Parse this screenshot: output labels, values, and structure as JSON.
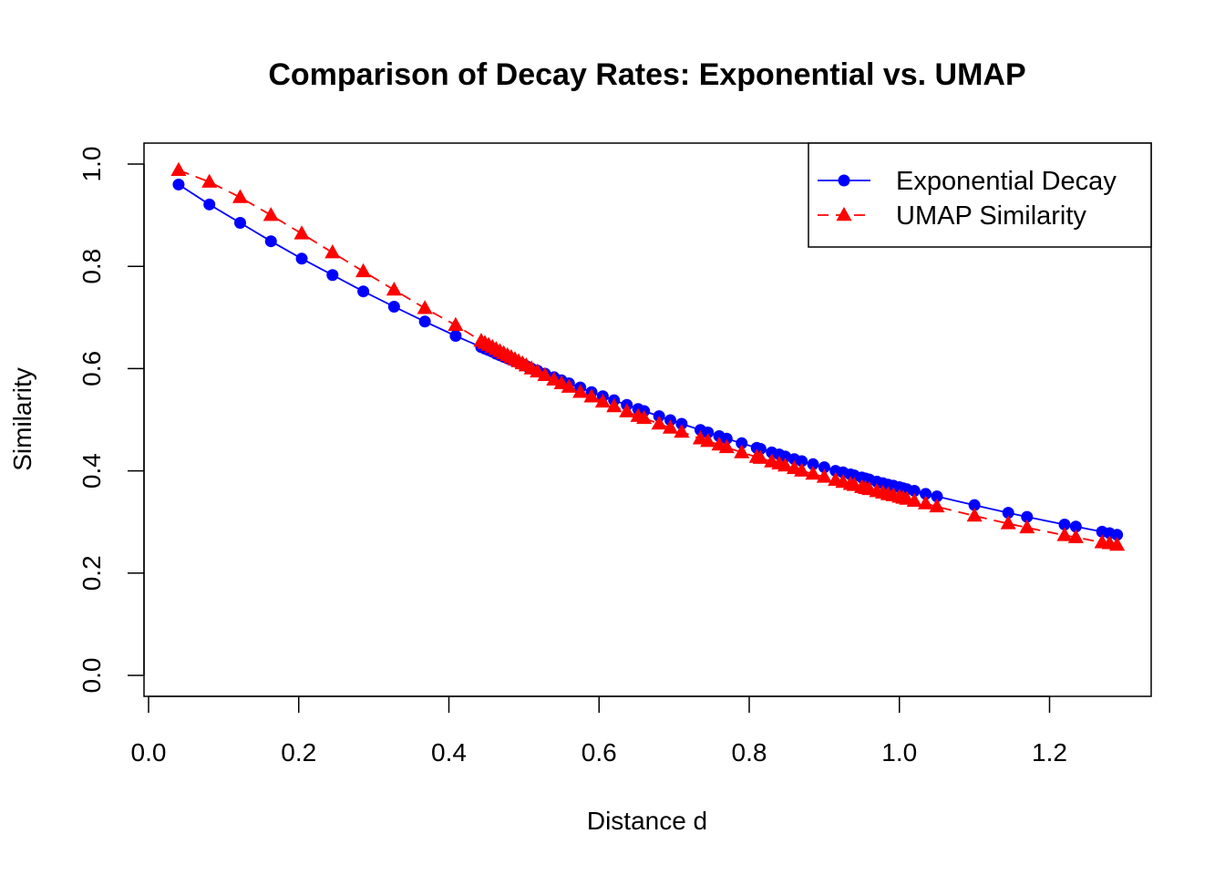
{
  "chart_data": {
    "type": "line",
    "title": "Comparison of Decay Rates: Exponential vs. UMAP",
    "xlabel": "Distance d",
    "ylabel": "Similarity",
    "xlim": [
      0.0,
      1.3
    ],
    "ylim": [
      0.0,
      1.0
    ],
    "xticks": [
      "0.0",
      "0.2",
      "0.4",
      "0.6",
      "0.8",
      "1.0",
      "1.2"
    ],
    "yticks": [
      "0.0",
      "0.2",
      "0.4",
      "0.6",
      "0.8",
      "1.0"
    ],
    "grid": false,
    "legend_position": "top-right",
    "x": [
      0.04,
      0.081,
      0.122,
      0.163,
      0.204,
      0.245,
      0.286,
      0.327,
      0.368,
      0.409,
      0.443,
      0.448,
      0.453,
      0.458,
      0.463,
      0.468,
      0.473,
      0.478,
      0.483,
      0.488,
      0.493,
      0.498,
      0.503,
      0.51,
      0.518,
      0.528,
      0.54,
      0.55,
      0.56,
      0.575,
      0.59,
      0.605,
      0.62,
      0.637,
      0.652,
      0.66,
      0.68,
      0.695,
      0.71,
      0.735,
      0.745,
      0.76,
      0.77,
      0.79,
      0.81,
      0.815,
      0.83,
      0.84,
      0.848,
      0.86,
      0.87,
      0.885,
      0.9,
      0.915,
      0.925,
      0.935,
      0.94,
      0.95,
      0.955,
      0.96,
      0.97,
      0.978,
      0.985,
      0.992,
      1.0,
      1.005,
      1.01,
      1.02,
      1.035,
      1.05,
      1.1,
      1.145,
      1.17,
      1.22,
      1.235,
      1.27,
      1.28,
      1.29
    ],
    "series": [
      {
        "name": "Exponential Decay",
        "color": "#0000ff",
        "marker": "circle",
        "line_style": "solid",
        "values": [
          0.96,
          0.921,
          0.885,
          0.849,
          0.815,
          0.783,
          0.751,
          0.721,
          0.692,
          0.664,
          0.642,
          0.639,
          0.636,
          0.633,
          0.629,
          0.626,
          0.623,
          0.62,
          0.617,
          0.614,
          0.611,
          0.608,
          0.605,
          0.6,
          0.596,
          0.59,
          0.583,
          0.577,
          0.571,
          0.563,
          0.554,
          0.546,
          0.538,
          0.529,
          0.521,
          0.517,
          0.507,
          0.499,
          0.492,
          0.48,
          0.475,
          0.468,
          0.463,
          0.454,
          0.445,
          0.443,
          0.436,
          0.432,
          0.428,
          0.423,
          0.419,
          0.413,
          0.407,
          0.4,
          0.397,
          0.393,
          0.391,
          0.387,
          0.385,
          0.383,
          0.379,
          0.376,
          0.373,
          0.371,
          0.368,
          0.366,
          0.364,
          0.361,
          0.355,
          0.35,
          0.333,
          0.318,
          0.31,
          0.295,
          0.291,
          0.281,
          0.278,
          0.275
        ]
      },
      {
        "name": "UMAP Similarity",
        "color": "#ff0000",
        "marker": "triangle",
        "line_style": "dashed",
        "values": [
          0.988,
          0.965,
          0.935,
          0.9,
          0.864,
          0.827,
          0.79,
          0.754,
          0.718,
          0.685,
          0.654,
          0.65,
          0.646,
          0.642,
          0.638,
          0.634,
          0.63,
          0.626,
          0.622,
          0.618,
          0.614,
          0.61,
          0.606,
          0.6,
          0.594,
          0.587,
          0.578,
          0.571,
          0.564,
          0.554,
          0.545,
          0.535,
          0.526,
          0.516,
          0.507,
          0.503,
          0.492,
          0.484,
          0.476,
          0.463,
          0.458,
          0.451,
          0.446,
          0.436,
          0.427,
          0.425,
          0.418,
          0.414,
          0.41,
          0.405,
          0.4,
          0.394,
          0.388,
          0.382,
          0.378,
          0.374,
          0.372,
          0.368,
          0.366,
          0.364,
          0.36,
          0.357,
          0.354,
          0.352,
          0.349,
          0.347,
          0.345,
          0.341,
          0.336,
          0.33,
          0.312,
          0.297,
          0.289,
          0.274,
          0.27,
          0.26,
          0.258,
          0.255
        ]
      }
    ]
  }
}
